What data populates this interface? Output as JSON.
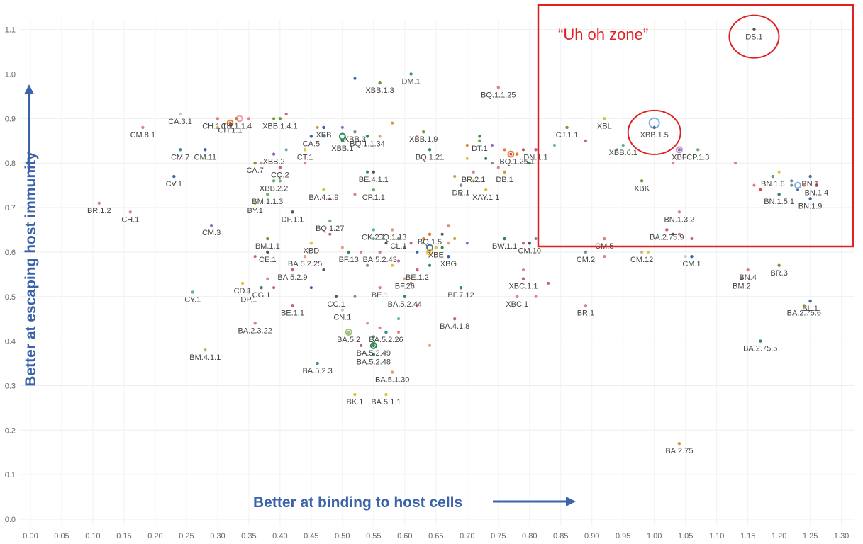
{
  "chart_data": {
    "type": "scatter",
    "title": "",
    "xlabel": "Better at binding to host cells",
    "ylabel": "Better at escaping host immunity",
    "xlim": [
      0,
      1.3
    ],
    "ylim": [
      0,
      1.1
    ],
    "x_ticks": [
      "0.00",
      "0.05",
      "0.10",
      "0.15",
      "0.20",
      "0.25",
      "0.30",
      "0.35",
      "0.40",
      "0.45",
      "0.50",
      "0.55",
      "0.60",
      "0.65",
      "0.70",
      "0.75",
      "0.80",
      "0.85",
      "0.90",
      "0.95",
      "1.00",
      "1.05",
      "1.10",
      "1.15",
      "1.20",
      "1.25",
      "1.30"
    ],
    "y_ticks": [
      "0.0",
      "0.1",
      "0.2",
      "0.3",
      "0.4",
      "0.5",
      "0.6",
      "0.7",
      "0.8",
      "0.9",
      "1.0",
      "1.1"
    ],
    "grid": true,
    "annotation_zone": {
      "label": "“Uh oh zone”",
      "x_range": [
        0.82,
        1.31
      ],
      "y_range": [
        0.61,
        1.17
      ]
    },
    "highlighted": [
      "DS.1",
      "XBB.1.5"
    ],
    "points": [
      {
        "label": "DS.1",
        "x": 1.16,
        "y": 1.1,
        "color": "#555555"
      },
      {
        "label": "XBB.1.5",
        "x": 1.0,
        "y": 0.88,
        "color": "#4a6fa5"
      },
      {
        "label": "XBL",
        "x": 0.92,
        "y": 0.9,
        "color": "#c9c93e"
      },
      {
        "label": "CJ.1.1",
        "x": 0.86,
        "y": 0.88,
        "color": "#6b9b3a"
      },
      {
        "label": "XBB.6.1",
        "x": 0.95,
        "y": 0.84,
        "color": "#5fb3a0"
      },
      {
        "label": "DN.1.1",
        "x": 0.81,
        "y": 0.83,
        "color": "#c95a8a"
      },
      {
        "label": "XBF",
        "x": 1.04,
        "y": 0.83,
        "color": "#8b6ac9"
      },
      {
        "label": "CP.1.3",
        "x": 1.07,
        "y": 0.83,
        "color": "#6bb36b"
      },
      {
        "label": "XBK",
        "x": 0.98,
        "y": 0.76,
        "color": "#6b9b3a"
      },
      {
        "label": "BN.1.6",
        "x": 1.19,
        "y": 0.77,
        "color": "#5ba55b"
      },
      {
        "label": "BN.1",
        "x": 1.25,
        "y": 0.77,
        "color": "#4a6fa5"
      },
      {
        "label": "BN.1.4",
        "x": 1.26,
        "y": 0.75,
        "color": "#d04a4a"
      },
      {
        "label": "BN.1.5.1",
        "x": 1.2,
        "y": 0.73,
        "color": "#2e8b57"
      },
      {
        "label": "BN.1.9",
        "x": 1.25,
        "y": 0.72,
        "color": "#3a63a9"
      },
      {
        "label": "BN.1.3.2",
        "x": 1.04,
        "y": 0.69,
        "color": "#e08080"
      },
      {
        "label": "BA.2.75.9",
        "x": 1.02,
        "y": 0.65,
        "color": "#c95a8a"
      },
      {
        "label": "CM.5",
        "x": 0.92,
        "y": 0.63,
        "color": "#e08080"
      },
      {
        "label": "CM.2",
        "x": 0.89,
        "y": 0.6,
        "color": "#888888"
      },
      {
        "label": "CM.12",
        "x": 0.98,
        "y": 0.6,
        "color": "#d2b48c"
      },
      {
        "label": "CM.1",
        "x": 1.06,
        "y": 0.59,
        "color": "#3a63a9"
      },
      {
        "label": "BN.4",
        "x": 1.15,
        "y": 0.56,
        "color": "#e08080"
      },
      {
        "label": "BR.3",
        "x": 1.2,
        "y": 0.57,
        "color": "#6b9b3a"
      },
      {
        "label": "BM.2",
        "x": 1.14,
        "y": 0.54,
        "color": "#c95a8a"
      },
      {
        "label": "BL.1",
        "x": 1.25,
        "y": 0.49,
        "color": "#3a63a9"
      },
      {
        "label": "BA.2.75.6",
        "x": 1.24,
        "y": 0.48,
        "color": "#e0c040"
      },
      {
        "label": "BA.2.75.5",
        "x": 1.17,
        "y": 0.4,
        "color": "#2e8b57"
      },
      {
        "label": "BA.2.75",
        "x": 1.04,
        "y": 0.17,
        "color": "#c9a030"
      },
      {
        "label": "BR.1",
        "x": 0.89,
        "y": 0.48,
        "color": "#e08080"
      },
      {
        "label": "XBC.1.1",
        "x": 0.79,
        "y": 0.54,
        "color": "#c95a8a"
      },
      {
        "label": "XBC.1",
        "x": 0.78,
        "y": 0.5,
        "color": "#e08080"
      },
      {
        "label": "CM.10",
        "x": 0.8,
        "y": 0.62,
        "color": "#555555"
      },
      {
        "label": "BW.1.1",
        "x": 0.76,
        "y": 0.63,
        "color": "#2e8b57"
      },
      {
        "label": "BQ.1.1.25",
        "x": 0.75,
        "y": 0.97,
        "color": "#e08080"
      },
      {
        "label": "DT.1",
        "x": 0.72,
        "y": 0.85,
        "color": "#6b9b3a"
      },
      {
        "label": "BQ.1.25.1",
        "x": 0.78,
        "y": 0.82,
        "color": "#e07b30"
      },
      {
        "label": "BR.2.1",
        "x": 0.71,
        "y": 0.78,
        "color": "#e08080"
      },
      {
        "label": "DB.1",
        "x": 0.76,
        "y": 0.78,
        "color": "#c9a030"
      },
      {
        "label": "DR.1",
        "x": 0.69,
        "y": 0.75,
        "color": "#888888"
      },
      {
        "label": "XAY.1.1",
        "x": 0.73,
        "y": 0.74,
        "color": "#e0c040"
      },
      {
        "label": "DM.1",
        "x": 0.61,
        "y": 1.0,
        "color": "#3a8a9a"
      },
      {
        "label": "XBB.1.3",
        "x": 0.56,
        "y": 0.98,
        "color": "#6b9b3a"
      },
      {
        "label": "XBB.1.9",
        "x": 0.63,
        "y": 0.87,
        "color": "#6b9b3a"
      },
      {
        "label": "BQ.1.1.34",
        "x": 0.54,
        "y": 0.86,
        "color": "#2e8b57"
      },
      {
        "label": "XBB.3",
        "x": 0.52,
        "y": 0.87,
        "color": "#888888"
      },
      {
        "label": "XBB",
        "x": 0.47,
        "y": 0.88,
        "color": "#3a63a9"
      },
      {
        "label": "XBB.1",
        "x": 0.5,
        "y": 0.85,
        "color": "#2e8b57"
      },
      {
        "label": "CA.5",
        "x": 0.45,
        "y": 0.86,
        "color": "#3a63a9"
      },
      {
        "label": "BQ.1.21",
        "x": 0.64,
        "y": 0.83,
        "color": "#2e8b57"
      },
      {
        "label": "BE.4.1.1",
        "x": 0.55,
        "y": 0.78,
        "color": "#555555"
      },
      {
        "label": "BA.4.1.9",
        "x": 0.47,
        "y": 0.74,
        "color": "#c9c93e"
      },
      {
        "label": "CP.1.1",
        "x": 0.55,
        "y": 0.74,
        "color": "#6bb36b"
      },
      {
        "label": "CH.1.1.4",
        "x": 0.33,
        "y": 0.9,
        "color": "#e07b30"
      },
      {
        "label": "CH.1.1.2",
        "x": 0.3,
        "y": 0.9,
        "color": "#e08080"
      },
      {
        "label": "CH.1.1",
        "x": 0.32,
        "y": 0.89,
        "color": "#e07b30"
      },
      {
        "label": "XBB.1.4.1",
        "x": 0.4,
        "y": 0.9,
        "color": "#6b9b3a"
      },
      {
        "label": "CA.3.1",
        "x": 0.24,
        "y": 0.91,
        "color": "#c8c8c8"
      },
      {
        "label": "CM.8.1",
        "x": 0.18,
        "y": 0.88,
        "color": "#e08080"
      },
      {
        "label": "CM.7",
        "x": 0.24,
        "y": 0.83,
        "color": "#3a8a9a"
      },
      {
        "label": "CM.11",
        "x": 0.28,
        "y": 0.83,
        "color": "#3a63a9"
      },
      {
        "label": "CV.1",
        "x": 0.23,
        "y": 0.77,
        "color": "#3a63a9"
      },
      {
        "label": "XBB.2",
        "x": 0.39,
        "y": 0.82,
        "color": "#8b6ac9"
      },
      {
        "label": "CT.1",
        "x": 0.44,
        "y": 0.83,
        "color": "#e0c040"
      },
      {
        "label": "CA.7",
        "x": 0.36,
        "y": 0.8,
        "color": "#6b9b3a"
      },
      {
        "label": "CQ.2",
        "x": 0.4,
        "y": 0.79,
        "color": "#c95a8a"
      },
      {
        "label": "XBB.2.2",
        "x": 0.39,
        "y": 0.76,
        "color": "#6bb36b"
      },
      {
        "label": "BM.1.1.3",
        "x": 0.38,
        "y": 0.73,
        "color": "#6bb36b"
      },
      {
        "label": "BY.1",
        "x": 0.36,
        "y": 0.71,
        "color": "#e0c040"
      },
      {
        "label": "DF.1.1",
        "x": 0.42,
        "y": 0.69,
        "color": "#555555"
      },
      {
        "label": "BR.1.2",
        "x": 0.11,
        "y": 0.71,
        "color": "#e08080"
      },
      {
        "label": "CH.1",
        "x": 0.16,
        "y": 0.69,
        "color": "#e08080"
      },
      {
        "label": "CM.3",
        "x": 0.29,
        "y": 0.66,
        "color": "#8b6ac9"
      },
      {
        "label": "BQ.1.27",
        "x": 0.48,
        "y": 0.67,
        "color": "#6bb36b"
      },
      {
        "label": "BM.1.1",
        "x": 0.38,
        "y": 0.63,
        "color": "#6b9b3a"
      },
      {
        "label": "XBD",
        "x": 0.45,
        "y": 0.62,
        "color": "#e0c040"
      },
      {
        "label": "CE.1",
        "x": 0.38,
        "y": 0.6,
        "color": "#555555"
      },
      {
        "label": "BA.5.2.25",
        "x": 0.44,
        "y": 0.59,
        "color": "#e0a080"
      },
      {
        "label": "BA.5.2.9",
        "x": 0.42,
        "y": 0.56,
        "color": "#c95a8a"
      },
      {
        "label": "CD.1",
        "x": 0.34,
        "y": 0.53,
        "color": "#e0c040"
      },
      {
        "label": "CG.1",
        "x": 0.37,
        "y": 0.52,
        "color": "#2e8b57"
      },
      {
        "label": "DP.1",
        "x": 0.35,
        "y": 0.51,
        "color": "#c8c8c8"
      },
      {
        "label": "CY.1",
        "x": 0.26,
        "y": 0.51,
        "color": "#5fb3a0"
      },
      {
        "label": "BE.1.1",
        "x": 0.42,
        "y": 0.48,
        "color": "#c95a8a"
      },
      {
        "label": "BA.2.3.22",
        "x": 0.36,
        "y": 0.44,
        "color": "#e08080"
      },
      {
        "label": "BM.4.1.1",
        "x": 0.28,
        "y": 0.38,
        "color": "#a0c080"
      },
      {
        "label": "BQ.1.13",
        "x": 0.58,
        "y": 0.65,
        "color": "#e0a080"
      },
      {
        "label": "CK.2.1",
        "x": 0.55,
        "y": 0.65,
        "color": "#5fb3a0"
      },
      {
        "label": "CL.1",
        "x": 0.59,
        "y": 0.63,
        "color": "#888888"
      },
      {
        "label": "BQ.1.5",
        "x": 0.64,
        "y": 0.64,
        "color": "#e07b30"
      },
      {
        "label": "XBE",
        "x": 0.65,
        "y": 0.61,
        "color": "#e0c040"
      },
      {
        "label": "XBG",
        "x": 0.67,
        "y": 0.59,
        "color": "#3a63a9"
      },
      {
        "label": "BF.13",
        "x": 0.51,
        "y": 0.6,
        "color": "#2e8b57"
      },
      {
        "label": "BA.5.2.43",
        "x": 0.56,
        "y": 0.6,
        "color": "#e08080"
      },
      {
        "label": "BE.1.2",
        "x": 0.62,
        "y": 0.56,
        "color": "#c95a8a"
      },
      {
        "label": "BF.26",
        "x": 0.6,
        "y": 0.54,
        "color": "#e0a080"
      },
      {
        "label": "BE.1",
        "x": 0.56,
        "y": 0.52,
        "color": "#e08080"
      },
      {
        "label": "BF.7.12",
        "x": 0.69,
        "y": 0.52,
        "color": "#2e8b57"
      },
      {
        "label": "CC.1",
        "x": 0.49,
        "y": 0.5,
        "color": "#555555"
      },
      {
        "label": "BA.5.2.44",
        "x": 0.6,
        "y": 0.5,
        "color": "#2e8b57"
      },
      {
        "label": "CN.1",
        "x": 0.5,
        "y": 0.47,
        "color": "#c8c8c8"
      },
      {
        "label": "BA.4.1.8",
        "x": 0.68,
        "y": 0.45,
        "color": "#c95a8a"
      },
      {
        "label": "BA.5.2.26",
        "x": 0.57,
        "y": 0.42,
        "color": "#3a8a9a"
      },
      {
        "label": "BA.5.2",
        "x": 0.51,
        "y": 0.42,
        "color": "#a0c080"
      },
      {
        "label": "BA.5.2.49",
        "x": 0.55,
        "y": 0.39,
        "color": "#2e8b57"
      },
      {
        "label": "BA.5.2.48",
        "x": 0.55,
        "y": 0.37,
        "color": "#2e8b57"
      },
      {
        "label": "BA.5.2.3",
        "x": 0.46,
        "y": 0.35,
        "color": "#3a8a9a"
      },
      {
        "label": "BA.5.1.30",
        "x": 0.58,
        "y": 0.33,
        "color": "#e0a080"
      },
      {
        "label": "BK.1",
        "x": 0.52,
        "y": 0.28,
        "color": "#e0c040"
      },
      {
        "label": "BA.5.1.1",
        "x": 0.57,
        "y": 0.28,
        "color": "#e0c040"
      }
    ],
    "unlabeled_points": [
      [
        0.52,
        0.99,
        "#3a63a9"
      ],
      [
        0.5,
        0.88,
        "#8b6ac9"
      ],
      [
        0.58,
        0.89,
        "#c9a030"
      ],
      [
        0.62,
        0.86,
        "#e0a080"
      ],
      [
        0.7,
        0.84,
        "#e07b30"
      ],
      [
        0.74,
        0.84,
        "#8b6ac9"
      ],
      [
        0.76,
        0.83,
        "#e07b30"
      ],
      [
        0.77,
        0.82,
        "#d04a4a"
      ],
      [
        0.73,
        0.81,
        "#2e8b57"
      ],
      [
        0.79,
        0.83,
        "#d04a4a"
      ],
      [
        0.8,
        0.8,
        "#2e8b57"
      ],
      [
        0.75,
        0.79,
        "#e08080"
      ],
      [
        0.7,
        0.81,
        "#e0c040"
      ],
      [
        0.68,
        0.77,
        "#c9a030"
      ],
      [
        0.71,
        0.76,
        "#e0c040"
      ],
      [
        0.69,
        0.73,
        "#888888"
      ],
      [
        0.84,
        0.84,
        "#5fb3a0"
      ],
      [
        0.89,
        0.85,
        "#c95a8a"
      ],
      [
        0.94,
        0.83,
        "#5fb3a0"
      ],
      [
        1.03,
        0.8,
        "#e08080"
      ],
      [
        1.13,
        0.8,
        "#e08080"
      ],
      [
        1.16,
        0.75,
        "#e08080"
      ],
      [
        1.17,
        0.74,
        "#d04a4a"
      ],
      [
        1.22,
        0.75,
        "#5ba55b"
      ],
      [
        1.24,
        0.75,
        "#e07b30"
      ],
      [
        1.23,
        0.74,
        "#4a6fa5"
      ],
      [
        1.2,
        0.78,
        "#e0c040"
      ],
      [
        1.22,
        0.76,
        "#8b6ac9"
      ],
      [
        1.04,
        0.64,
        "#e08080"
      ],
      [
        1.06,
        0.63,
        "#c95a8a"
      ],
      [
        1.03,
        0.64,
        "#555555"
      ],
      [
        0.99,
        0.6,
        "#e0c040"
      ],
      [
        1.05,
        0.59,
        "#c8c8c8"
      ],
      [
        0.92,
        0.59,
        "#e08080"
      ],
      [
        0.81,
        0.63,
        "#888888"
      ],
      [
        0.79,
        0.56,
        "#e08080"
      ],
      [
        0.83,
        0.53,
        "#c95a8a"
      ],
      [
        0.81,
        0.5,
        "#e08080"
      ],
      [
        0.79,
        0.62,
        "#c95a8a"
      ],
      [
        0.66,
        0.64,
        "#555555"
      ],
      [
        0.67,
        0.62,
        "#e0a080"
      ],
      [
        0.64,
        0.6,
        "#e0c040"
      ],
      [
        0.61,
        0.62,
        "#c95a8a"
      ],
      [
        0.62,
        0.6,
        "#3a63a9"
      ],
      [
        0.66,
        0.61,
        "#2e8b57"
      ],
      [
        0.63,
        0.63,
        "#e07b30"
      ],
      [
        0.6,
        0.61,
        "#888888"
      ],
      [
        0.68,
        0.63,
        "#c9a030"
      ],
      [
        0.7,
        0.62,
        "#8b6ac9"
      ],
      [
        0.67,
        0.66,
        "#e08080"
      ],
      [
        0.57,
        0.62,
        "#555555"
      ],
      [
        0.58,
        0.57,
        "#e0c040"
      ],
      [
        0.59,
        0.58,
        "#c95a8a"
      ],
      [
        0.61,
        0.53,
        "#e08080"
      ],
      [
        0.64,
        0.57,
        "#2e8b57"
      ],
      [
        0.55,
        0.63,
        "#5fb3a0"
      ],
      [
        0.53,
        0.6,
        "#e08080"
      ],
      [
        0.54,
        0.57,
        "#888888"
      ],
      [
        0.59,
        0.45,
        "#5fb3a0"
      ],
      [
        0.59,
        0.42,
        "#e08080"
      ],
      [
        0.62,
        0.48,
        "#c95a8a"
      ],
      [
        0.64,
        0.39,
        "#e0a080"
      ],
      [
        0.55,
        0.41,
        "#2e8b57"
      ],
      [
        0.54,
        0.44,
        "#e0a080"
      ],
      [
        0.53,
        0.39,
        "#c95a8a"
      ],
      [
        0.56,
        0.43,
        "#e08080"
      ],
      [
        0.49,
        0.5,
        "#3a63a9"
      ],
      [
        0.52,
        0.5,
        "#888888"
      ],
      [
        0.45,
        0.52,
        "#3a63a9"
      ],
      [
        0.47,
        0.56,
        "#555555"
      ],
      [
        0.5,
        0.61,
        "#e0a080"
      ],
      [
        0.48,
        0.64,
        "#c95a8a"
      ],
      [
        0.39,
        0.52,
        "#c95a8a"
      ],
      [
        0.38,
        0.54,
        "#e08080"
      ],
      [
        0.36,
        0.59,
        "#c95a8a"
      ],
      [
        0.4,
        0.76,
        "#6bb36b"
      ],
      [
        0.37,
        0.8,
        "#e08080"
      ],
      [
        0.41,
        0.83,
        "#5fb3a0"
      ],
      [
        0.44,
        0.8,
        "#e08080"
      ],
      [
        0.46,
        0.88,
        "#c9a030"
      ],
      [
        0.39,
        0.9,
        "#6b9b3a"
      ],
      [
        0.41,
        0.91,
        "#c95a8a"
      ],
      [
        0.35,
        0.9,
        "#e08080"
      ],
      [
        0.33,
        0.9,
        "#e08080"
      ],
      [
        0.48,
        0.72,
        "#c95a8a"
      ],
      [
        0.52,
        0.73,
        "#e08080"
      ],
      [
        0.54,
        0.78,
        "#2e8b57"
      ],
      [
        0.56,
        0.86,
        "#e0a080"
      ],
      [
        0.47,
        0.86,
        "#3a8a9a"
      ],
      [
        0.3,
        0.88,
        "#e0c040"
      ],
      [
        0.72,
        0.86,
        "#2e8b57"
      ],
      [
        0.74,
        0.8,
        "#888888"
      ]
    ],
    "series_markers": [
      {
        "x": 1.0,
        "y": 0.89,
        "ring": true,
        "color": "#7ab0e0"
      },
      {
        "x": 0.335,
        "y": 0.9,
        "ring": true,
        "color": "#e8a0b0"
      },
      {
        "x": 0.32,
        "y": 0.89,
        "ring": true,
        "color": "#e07b30"
      },
      {
        "x": 0.5,
        "y": 0.86,
        "ring": true,
        "color": "#2e8b57"
      },
      {
        "x": 0.77,
        "y": 0.82,
        "ring": true,
        "color": "#e07b30"
      },
      {
        "x": 0.64,
        "y": 0.61,
        "ring": true,
        "color": "#4a6fa5"
      },
      {
        "x": 0.64,
        "y": 0.6,
        "ring": true,
        "color": "#e0c040"
      },
      {
        "x": 0.55,
        "y": 0.39,
        "ring": true,
        "color": "#2e8b57"
      },
      {
        "x": 0.51,
        "y": 0.42,
        "ring": true,
        "color": "#a0c080"
      },
      {
        "x": 1.04,
        "y": 0.83,
        "ring": true,
        "color": "#c890c0"
      },
      {
        "x": 1.23,
        "y": 0.75,
        "ring": true,
        "color": "#7ab0e0"
      }
    ]
  }
}
